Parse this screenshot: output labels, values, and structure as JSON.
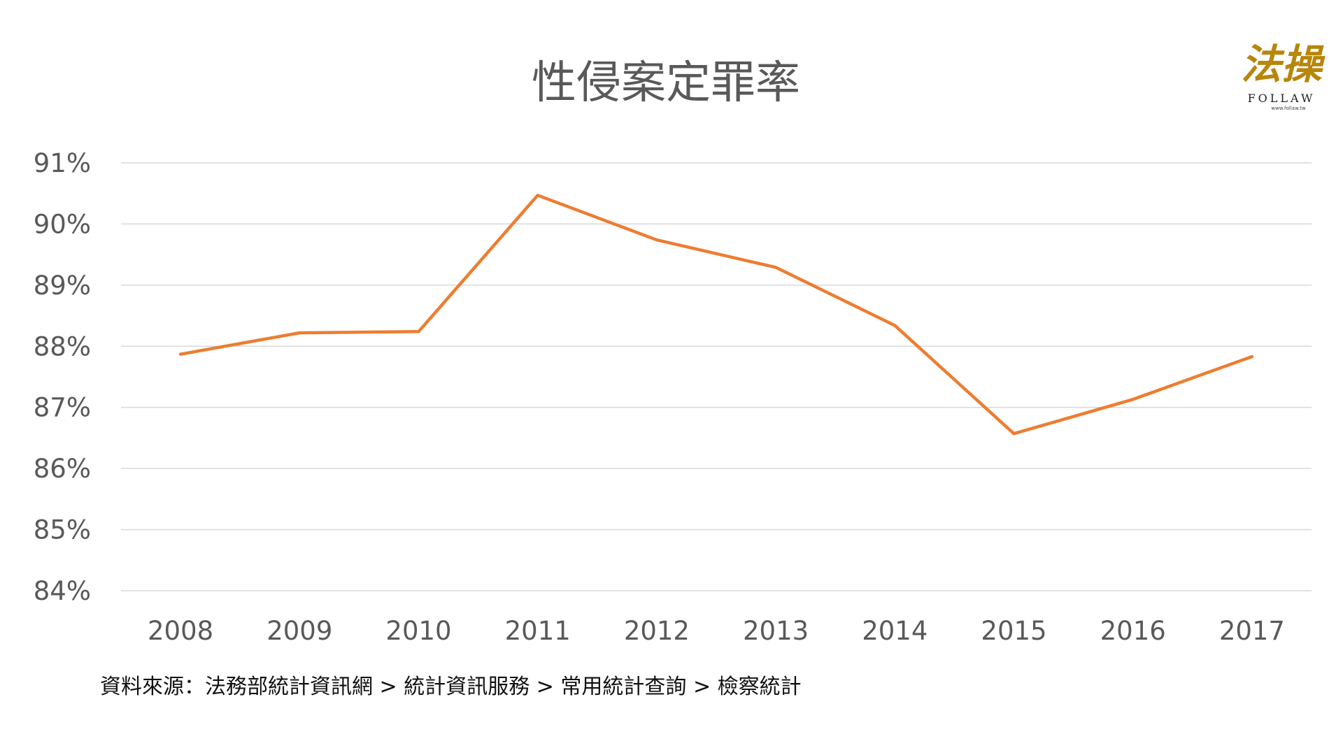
{
  "colors": {
    "line": "#ed7d31",
    "gold": "#b8860b"
  },
  "logo": {
    "mark": "法操",
    "word": "FOLLAW",
    "url": "www.follaw.tw"
  },
  "source_note": "資料來源：法務部統計資訊網 > 統計資訊服務 > 常用統計查詢 > 檢察統計",
  "chart_data": {
    "type": "line",
    "title": "性侵案定罪率",
    "xlabel": "",
    "ylabel": "",
    "categories": [
      "2008",
      "2009",
      "2010",
      "2011",
      "2012",
      "2013",
      "2014",
      "2015",
      "2016",
      "2017"
    ],
    "series": [
      {
        "values": [
          87.87,
          88.22,
          88.24,
          90.47,
          89.74,
          89.29,
          88.34,
          86.57,
          87.13,
          87.83
        ]
      }
    ],
    "ylim": [
      84,
      91
    ],
    "yticks": [
      91,
      90,
      89,
      88,
      87,
      86,
      85,
      84
    ],
    "ytick_labels": [
      "91%",
      "90%",
      "89%",
      "88%",
      "87%",
      "86%",
      "85%",
      "84%"
    ],
    "grid": true,
    "legend": "none"
  }
}
